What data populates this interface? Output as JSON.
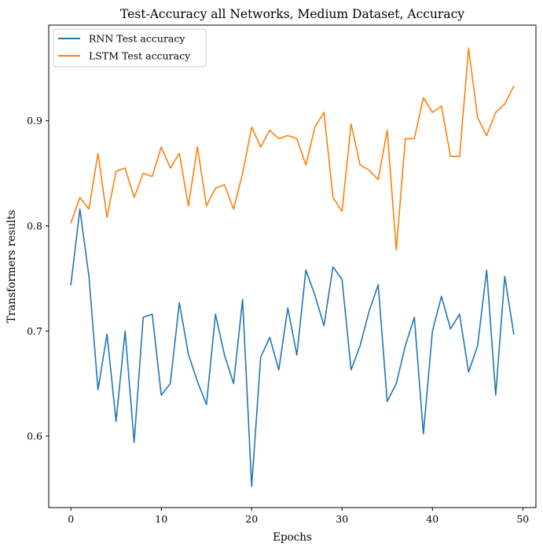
{
  "chart_data": {
    "type": "line",
    "title": "Test-Accuracy all Networks, Medium Dataset, Accuracy",
    "xlabel": "Epochs",
    "ylabel": "Transformers results",
    "xlim": [
      -2.45,
      51.45
    ],
    "ylim": [
      0.532,
      0.991
    ],
    "xticks": [
      0,
      10,
      20,
      30,
      40,
      50
    ],
    "yticks": [
      0.6,
      0.7,
      0.8,
      0.9
    ],
    "xtick_labels": [
      "0",
      "10",
      "20",
      "30",
      "40",
      "50"
    ],
    "ytick_labels": [
      "0.6",
      "0.7",
      "0.8",
      "0.9"
    ],
    "grid": false,
    "legend_position": "top-left",
    "x": [
      0,
      1,
      2,
      3,
      4,
      5,
      6,
      7,
      8,
      9,
      10,
      11,
      12,
      13,
      14,
      15,
      16,
      17,
      18,
      19,
      20,
      21,
      22,
      23,
      24,
      25,
      26,
      27,
      28,
      29,
      30,
      31,
      32,
      33,
      34,
      35,
      36,
      37,
      38,
      39,
      40,
      41,
      42,
      43,
      44,
      45,
      46,
      47,
      48,
      49
    ],
    "series": [
      {
        "name": "RNN Test accuracy",
        "color": "#1f77b4",
        "values": [
          0.744,
          0.816,
          0.752,
          0.644,
          0.697,
          0.614,
          0.7,
          0.594,
          0.713,
          0.716,
          0.639,
          0.65,
          0.727,
          0.678,
          0.652,
          0.63,
          0.716,
          0.677,
          0.65,
          0.73,
          0.552,
          0.675,
          0.694,
          0.663,
          0.722,
          0.677,
          0.758,
          0.734,
          0.705,
          0.761,
          0.749,
          0.663,
          0.686,
          0.719,
          0.744,
          0.633,
          0.65,
          0.686,
          0.713,
          0.602,
          0.7,
          0.733,
          0.702,
          0.716,
          0.661,
          0.686,
          0.758,
          0.639,
          0.752,
          0.697
        ]
      },
      {
        "name": "LSTM Test accuracy",
        "color": "#ff7f0e",
        "values": [
          0.803,
          0.827,
          0.816,
          0.869,
          0.808,
          0.852,
          0.855,
          0.827,
          0.85,
          0.847,
          0.875,
          0.855,
          0.869,
          0.819,
          0.875,
          0.819,
          0.836,
          0.839,
          0.816,
          0.85,
          0.894,
          0.875,
          0.891,
          0.883,
          0.886,
          0.883,
          0.858,
          0.894,
          0.908,
          0.827,
          0.814,
          0.897,
          0.858,
          0.853,
          0.844,
          0.891,
          0.777,
          0.883,
          0.883,
          0.922,
          0.908,
          0.914,
          0.866,
          0.866,
          0.969,
          0.903,
          0.886,
          0.908,
          0.916,
          0.933
        ]
      }
    ]
  }
}
